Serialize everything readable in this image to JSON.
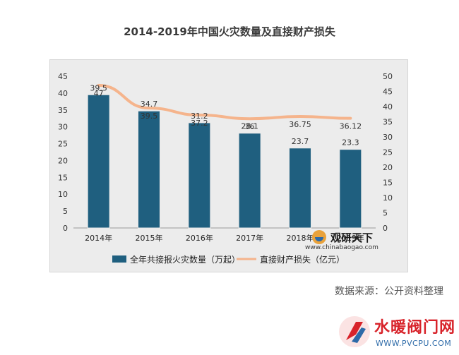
{
  "title": "2014-2019年中国火灾数量及直接财产损失",
  "source": "数据来源：公开资料整理",
  "chart_data": {
    "type": "bar",
    "categories": [
      "2014年",
      "2015年",
      "2016年",
      "2017年",
      "2018年",
      "2019年"
    ],
    "series": [
      {
        "name": "全年共接报火灾数量（万起）",
        "type": "bar",
        "axis": "left",
        "values": [
          39.5,
          34.7,
          31.2,
          28.1,
          23.7,
          23.3
        ],
        "labels": [
          "39.5",
          "34.7",
          "31.2",
          "28.1",
          "23.7",
          "23.3"
        ]
      },
      {
        "name": "直接财产损失（亿元）",
        "type": "line",
        "axis": "right",
        "values": [
          47,
          39.5,
          37.2,
          36,
          36.75,
          36.12
        ],
        "labels": [
          "47",
          "39.5",
          "37.2",
          "36",
          "36.75",
          "36.12"
        ]
      }
    ],
    "y_left": {
      "min": 0,
      "max": 45,
      "step": 5
    },
    "y_right": {
      "min": 0,
      "max": 50,
      "step": 5
    },
    "legend_position": "bottom",
    "colors": {
      "bar": "#1f5f7f",
      "line": "#f5b48c"
    }
  },
  "watermark": {
    "brand": "观研天下",
    "url": "www.chinabaogao.com",
    "corner_brand": "水暖阀门网",
    "corner_url": "WWW.PVCPU.COM"
  }
}
